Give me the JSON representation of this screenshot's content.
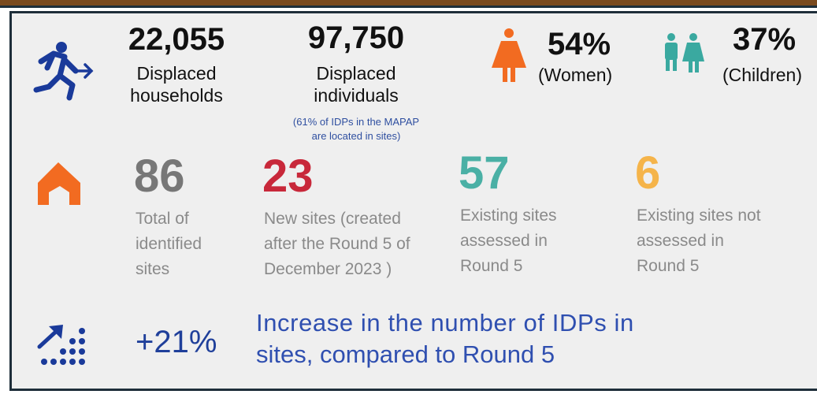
{
  "households": {
    "value": "22,055",
    "label": [
      "Displaced",
      "households"
    ]
  },
  "individuals": {
    "value": "97,750",
    "label": [
      "Displaced",
      "individuals"
    ],
    "note": [
      "(61% of IDPs in the MAPAP",
      "are located in sites)"
    ]
  },
  "women": {
    "value": "54%",
    "label": "(Women)"
  },
  "children": {
    "value": "37%",
    "label": "(Children)"
  },
  "sites": [
    {
      "value": "86",
      "label": [
        "Total of",
        "identified",
        "sites"
      ]
    },
    {
      "value": "23",
      "label": [
        "New sites (created",
        "after the Round 5 of",
        "December 2023 )"
      ]
    },
    {
      "value": "57",
      "label": [
        "Existing sites",
        "assessed in",
        "Round 5"
      ]
    },
    {
      "value": "6",
      "label": [
        "Existing sites not",
        "assessed in",
        "Round 5"
      ]
    }
  ],
  "increase": {
    "value": "+21%",
    "label": [
      "Increase in the number of IDPs in",
      "sites, compared to Round 5"
    ]
  }
}
